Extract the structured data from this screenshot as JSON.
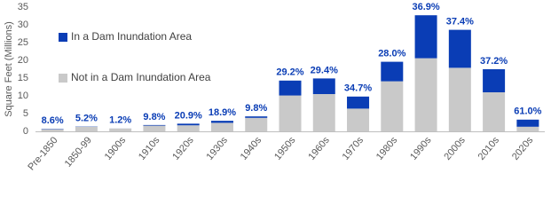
{
  "chart_data": {
    "type": "stacked_bar",
    "y_label": "Square Feet  (Millions)",
    "categories": [
      "Pre-1850",
      "1850-99",
      "1900s",
      "1910s",
      "1920s",
      "1930s",
      "1940s",
      "1950s",
      "1960s",
      "1970s",
      "1980s",
      "1990s",
      "2000s",
      "2010s",
      "2020s"
    ],
    "series": [
      {
        "name": "Not in a Dam Inundation Area",
        "color": "#c9c9c9",
        "values": [
          0.6,
          1.3,
          0.8,
          1.6,
          1.7,
          2.4,
          3.8,
          10.1,
          10.5,
          6.4,
          14.1,
          20.6,
          17.9,
          11.0,
          1.3
        ]
      },
      {
        "name": "In a Dam Inundation Area",
        "color": "#0a3db5",
        "values": [
          0.1,
          0.07,
          0.01,
          0.18,
          0.46,
          0.57,
          0.41,
          4.2,
          4.4,
          3.4,
          5.5,
          12.1,
          10.7,
          6.5,
          2.0
        ]
      }
    ],
    "share_labels": [
      "8.6%",
      "5.2%",
      "1.2%",
      "9.8%",
      "20.9%",
      "18.9%",
      "9.8%",
      "29.2%",
      "29.4%",
      "34.7%",
      "28.0%",
      "36.9%",
      "37.4%",
      "37.2%",
      "61.0%"
    ],
    "ylim": [
      0,
      35
    ],
    "yticks": [
      0,
      5,
      10,
      15,
      20,
      25,
      30,
      35
    ],
    "grid": false,
    "legend": "upper-left"
  }
}
